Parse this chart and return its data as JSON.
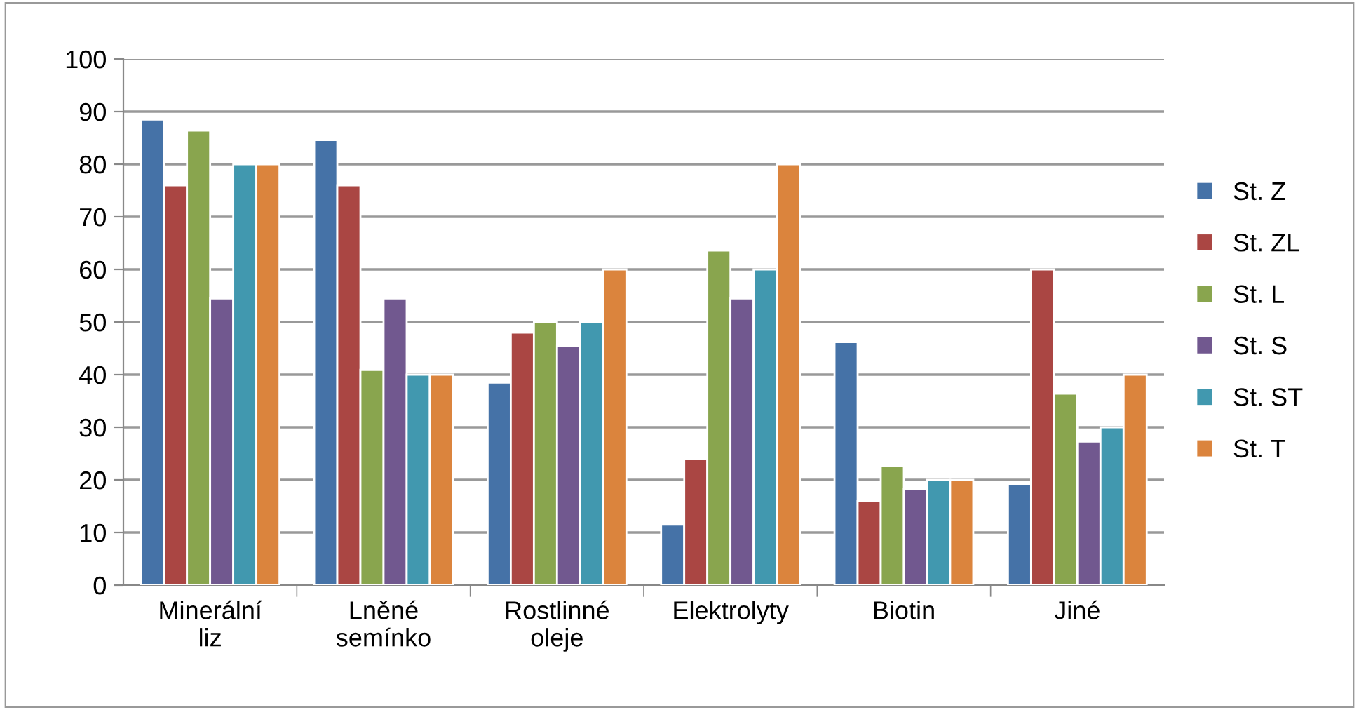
{
  "chart_data": {
    "type": "bar",
    "categories": [
      "Minerální liz",
      "Lněné semínko",
      "Rostlinné oleje",
      "Elektrolyty",
      "Biotin",
      "Jiné"
    ],
    "series": [
      {
        "name": "St. Z",
        "color": "#4572a7",
        "values": [
          88.5,
          84.6,
          38.5,
          11.5,
          46.2,
          19.2
        ]
      },
      {
        "name": "St. ZL",
        "color": "#aa4643",
        "values": [
          76,
          76,
          48,
          24,
          16,
          60
        ]
      },
      {
        "name": "St. L",
        "color": "#89a54e",
        "values": [
          86.4,
          40.9,
          50,
          63.6,
          22.7,
          36.4
        ]
      },
      {
        "name": "St. S",
        "color": "#71588f",
        "values": [
          54.5,
          54.5,
          45.5,
          54.5,
          18.2,
          27.3
        ]
      },
      {
        "name": "St. ST",
        "color": "#4198af",
        "values": [
          80,
          40,
          50,
          60,
          20,
          30
        ]
      },
      {
        "name": "St. T",
        "color": "#db843d",
        "values": [
          80,
          40,
          60,
          80,
          20,
          40
        ]
      }
    ],
    "ylim": [
      0,
      100
    ],
    "yticks": [
      0,
      10,
      20,
      30,
      40,
      50,
      60,
      70,
      80,
      90,
      100
    ],
    "grid": "y",
    "legend": "right"
  }
}
